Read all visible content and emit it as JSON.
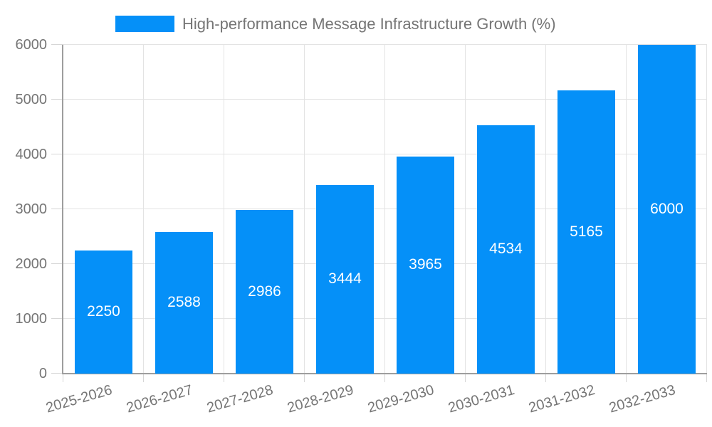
{
  "legend": {
    "label": "High-performance Message Infrastructure Growth (%)"
  },
  "colors": {
    "bar": "#0590f8",
    "grid": "#e3e3e3",
    "tick": "#d6d6d6",
    "axis": "#9e9e9e",
    "tick_label": "#757575",
    "bar_label": "#ffffff",
    "background": "#ffffff"
  },
  "chart_data": {
    "type": "bar",
    "title": "High-performance Message Infrastructure Growth (%)",
    "series": [
      {
        "name": "High-performance Message Infrastructure Growth (%)",
        "values": [
          2250,
          2588,
          2986,
          3444,
          3965,
          4534,
          5165,
          6000
        ]
      }
    ],
    "categories": [
      "2025-2026",
      "2026-2027",
      "2027-2028",
      "2028-2029",
      "2029-2030",
      "2030-2031",
      "2031-2032",
      "2032-2033"
    ],
    "bar_value_labels": [
      "2250",
      "2588",
      "2986",
      "3444",
      "3965",
      "4534",
      "5165",
      "6000"
    ],
    "xlabel": "",
    "ylabel": "",
    "ylim": [
      0,
      6000
    ],
    "y_ticks": [
      0,
      1000,
      2000,
      3000,
      4000,
      5000,
      6000
    ],
    "y_tick_labels": [
      "0",
      "1000",
      "2000",
      "3000",
      "4000",
      "5000",
      "6000"
    ],
    "grid": true,
    "legend_position": "top",
    "bar_label_position": "center-inside"
  }
}
